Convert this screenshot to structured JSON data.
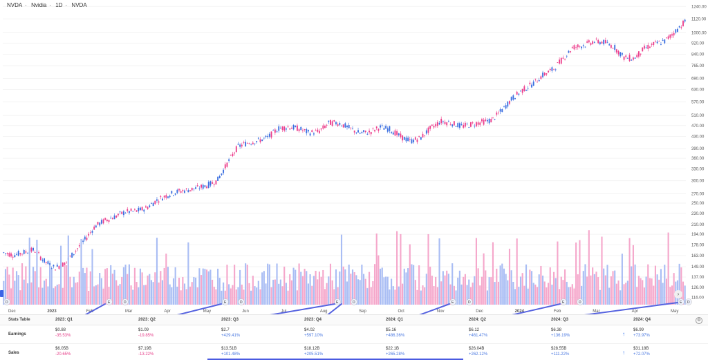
{
  "header": {
    "symbol": "NVDA",
    "name": "Nvidia",
    "interval": "1D",
    "exchange": "NVDA",
    "sep": "·"
  },
  "colors": {
    "up": "#3b6fe0",
    "down": "#ec3f8c",
    "vol_up": "#a9bdf4",
    "vol_down": "#f5a7cb",
    "trend": "#5663e0"
  },
  "chart_data": {
    "type": "candlestick",
    "title": "NVDA · Nvidia · 1D · NVDA",
    "ylabel": "",
    "y_scale": "log",
    "y_ticks": [
      "1240.00",
      "1120.00",
      "1000.00",
      "920.00",
      "840.00",
      "765.00",
      "690.00",
      "630.00",
      "570.00",
      "510.00",
      "470.00",
      "430.00",
      "390.00",
      "360.00",
      "330.00",
      "300.00",
      "270.00",
      "250.00",
      "230.00",
      "210.00",
      "194.00",
      "178.00",
      "163.00",
      "149.00",
      "137.00",
      "126.00",
      "116.00"
    ],
    "x_ticks": [
      "Dec",
      "2023",
      "Feb",
      "Mar",
      "Apr",
      "May",
      "Jun",
      "Jul",
      "Aug",
      "Sep",
      "Oct",
      "Nov",
      "Dec",
      "2024",
      "Feb",
      "Mar",
      "Apr",
      "May"
    ],
    "series": [
      {
        "values": [
          [
            163,
            171
          ],
          [
            170,
            158
          ],
          [
            160,
            175
          ],
          [
            176,
            166
          ],
          [
            162,
            150
          ],
          [
            150,
            145
          ],
          [
            146,
            160
          ],
          [
            162,
            175
          ],
          [
            178,
            194
          ],
          [
            197,
            218
          ],
          [
            220,
            215
          ],
          [
            214,
            235
          ],
          [
            236,
            230
          ],
          [
            232,
            236
          ],
          [
            232,
            248
          ],
          [
            248,
            262
          ],
          [
            260,
            272
          ],
          [
            270,
            278
          ],
          [
            276,
            280
          ],
          [
            278,
            286
          ],
          [
            285,
            292
          ],
          [
            290,
            310
          ],
          [
            306,
            390
          ],
          [
            392,
            398
          ],
          [
            398,
            420
          ],
          [
            418,
            412
          ],
          [
            414,
            440
          ],
          [
            443,
            475
          ],
          [
            470,
            460
          ],
          [
            462,
            455
          ],
          [
            455,
            432
          ],
          [
            430,
            465
          ],
          [
            466,
            495
          ],
          [
            490,
            470
          ],
          [
            470,
            450
          ],
          [
            448,
            435
          ],
          [
            436,
            455
          ],
          [
            457,
            470
          ],
          [
            468,
            445
          ],
          [
            440,
            420
          ],
          [
            418,
            410
          ],
          [
            410,
            440
          ],
          [
            442,
            480
          ],
          [
            482,
            492
          ],
          [
            490,
            470
          ],
          [
            472,
            462
          ],
          [
            464,
            485
          ],
          [
            487,
            480
          ],
          [
            482,
            500
          ],
          [
            505,
            560
          ],
          [
            562,
            610
          ],
          [
            612,
            640
          ],
          [
            638,
            680
          ],
          [
            690,
            725
          ],
          [
            722,
            760
          ],
          [
            770,
            850
          ],
          [
            860,
            920
          ],
          [
            915,
            890
          ],
          [
            905,
            960
          ],
          [
            955,
            900
          ],
          [
            910,
            880
          ],
          [
            870,
            770
          ],
          [
            775,
            850
          ],
          [
            855,
            905
          ],
          [
            906,
            920
          ],
          [
            918,
            950
          ],
          [
            955,
            1060
          ],
          [
            1065,
            1130
          ]
        ]
      }
    ],
    "volume_y_ticks": [],
    "annotations": {
      "earnings_markers": [
        "E",
        "E",
        "E",
        "E",
        "E",
        "E"
      ],
      "dividend_markers": [
        "D",
        "D",
        "D",
        "D",
        "D",
        "D",
        "D"
      ]
    }
  },
  "stats_table": {
    "title": "Stats Table",
    "columns": [
      "2023: Q1",
      "2023: Q2",
      "2023: Q3",
      "2023: Q4",
      "2024: Q1",
      "2024: Q2",
      "2024: Q3",
      "2024: Q4"
    ],
    "earnings_label": "Earnings",
    "sales_label": "Sales",
    "earnings": [
      {
        "value": "$0.88",
        "change": "-35.53%",
        "dir": "neg"
      },
      {
        "value": "$1.09",
        "change": "-19.85%",
        "dir": "neg"
      },
      {
        "value": "$2.7",
        "change": "+429.41%",
        "dir": "pos"
      },
      {
        "value": "$4.02",
        "change": "+597.10%",
        "dir": "pos"
      },
      {
        "value": "$5.16",
        "change": "+486.36%",
        "dir": "pos"
      },
      {
        "value": "$6.12",
        "change": "+461.47%",
        "dir": "pos"
      },
      {
        "value": "$6.38",
        "change": "+136.19%",
        "dir": "pos"
      },
      {
        "value": "$6.99",
        "change": "+73.97%",
        "dir": "pos"
      }
    ],
    "sales": [
      {
        "value": "$6.05B",
        "change": "-20.65%",
        "dir": "neg"
      },
      {
        "value": "$7.19B",
        "change": "-13.22%",
        "dir": "neg"
      },
      {
        "value": "$13.51B",
        "change": "+101.48%",
        "dir": "pos"
      },
      {
        "value": "$18.12B",
        "change": "+205.51%",
        "dir": "pos"
      },
      {
        "value": "$22.1B",
        "change": "+265.28%",
        "dir": "pos"
      },
      {
        "value": "$26.04B",
        "change": "+262.12%",
        "dir": "pos"
      },
      {
        "value": "$28.55B",
        "change": "+111.22%",
        "dir": "pos"
      },
      {
        "value": "$31.18B",
        "change": "+72.07%",
        "dir": "pos"
      }
    ],
    "forecast_arrow": "↑"
  }
}
